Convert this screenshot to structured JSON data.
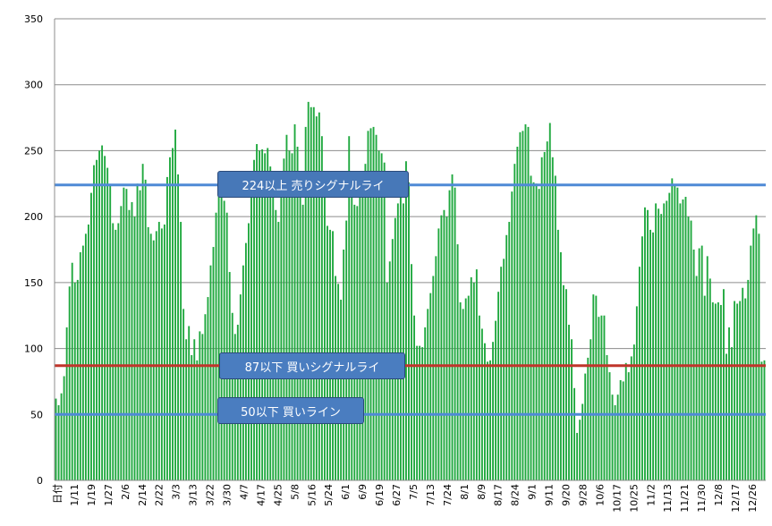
{
  "chart_data": {
    "type": "bar",
    "ylim": [
      0,
      350
    ],
    "yticks": [
      0,
      50,
      100,
      150,
      200,
      250,
      300,
      350
    ],
    "grid": true,
    "bar_color": "#1fa83e",
    "x_first_label": "日付",
    "x_tick_labels": [
      "1/11",
      "1/19",
      "1/27",
      "2/6",
      "2/14",
      "2/22",
      "3/3",
      "3/13",
      "3/22",
      "3/30",
      "4/7",
      "4/17",
      "4/25",
      "5/8",
      "5/16",
      "5/24",
      "6/1",
      "6/9",
      "6/19",
      "6/27",
      "7/5",
      "7/13",
      "7/24",
      "8/1",
      "8/9",
      "8/17",
      "8/24",
      "9/1",
      "9/11",
      "9/20",
      "9/28",
      "10/6",
      "10/17",
      "10/25",
      "11/2",
      "11/13",
      "11/21",
      "11/30",
      "12/8",
      "12/17",
      "12/26"
    ],
    "values": [
      62,
      57,
      66,
      79,
      116,
      147,
      165,
      150,
      152,
      173,
      178,
      187,
      194,
      218,
      239,
      243,
      250,
      254,
      246,
      237,
      224,
      195,
      190,
      195,
      208,
      222,
      221,
      205,
      211,
      200,
      225,
      220,
      240,
      228,
      192,
      187,
      182,
      189,
      196,
      191,
      194,
      230,
      245,
      252,
      266,
      232,
      196,
      130,
      107,
      117,
      95,
      107,
      91,
      113,
      111,
      126,
      139,
      163,
      177,
      203,
      219,
      223,
      212,
      203,
      158,
      127,
      111,
      118,
      141,
      163,
      180,
      195,
      225,
      243,
      255,
      250,
      251,
      248,
      252,
      238,
      229,
      205,
      196,
      225,
      244,
      262,
      250,
      248,
      270,
      253,
      224,
      209,
      268,
      287,
      283,
      283,
      276,
      279,
      261,
      227,
      193,
      190,
      189,
      155,
      149,
      137,
      175,
      197,
      261,
      220,
      209,
      208,
      216,
      222,
      240,
      265,
      267,
      268,
      262,
      250,
      248,
      241,
      150,
      166,
      183,
      199,
      210,
      219,
      210,
      242,
      226,
      164,
      125,
      102,
      102,
      101,
      116,
      130,
      142,
      155,
      170,
      191,
      201,
      205,
      200,
      220,
      232,
      222,
      179,
      135,
      130,
      138,
      140,
      154,
      150,
      160,
      125,
      115,
      104,
      90,
      91,
      105,
      121,
      143,
      162,
      168,
      186,
      196,
      219,
      240,
      253,
      264,
      265,
      270,
      268,
      231,
      226,
      225,
      221,
      245,
      249,
      257,
      271,
      245,
      231,
      190,
      173,
      148,
      145,
      118,
      107,
      70,
      36,
      46,
      58,
      81,
      93,
      107,
      141,
      140,
      124,
      125,
      125,
      95,
      82,
      65,
      57,
      65,
      76,
      75,
      89,
      82,
      94,
      103,
      132,
      162,
      185,
      207,
      205,
      190,
      188,
      210,
      206,
      202,
      210,
      212,
      218,
      229,
      224,
      222,
      210,
      213,
      215,
      200,
      197,
      175,
      155,
      176,
      178,
      140,
      170,
      153,
      135,
      134,
      135,
      133,
      145,
      96,
      116,
      101,
      136,
      134,
      136,
      146,
      138,
      152,
      178,
      191,
      201,
      187,
      90,
      91
    ],
    "lines": [
      {
        "label": "224以上  売りシグナルライ",
        "value": 224,
        "color": "#4f8ad6"
      },
      {
        "label": "87以下  買いシグナルライ",
        "value": 87,
        "color": "#c0352b"
      },
      {
        "label": "50以下  買いライン",
        "value": 50,
        "color": "#4f8ad6"
      }
    ]
  }
}
